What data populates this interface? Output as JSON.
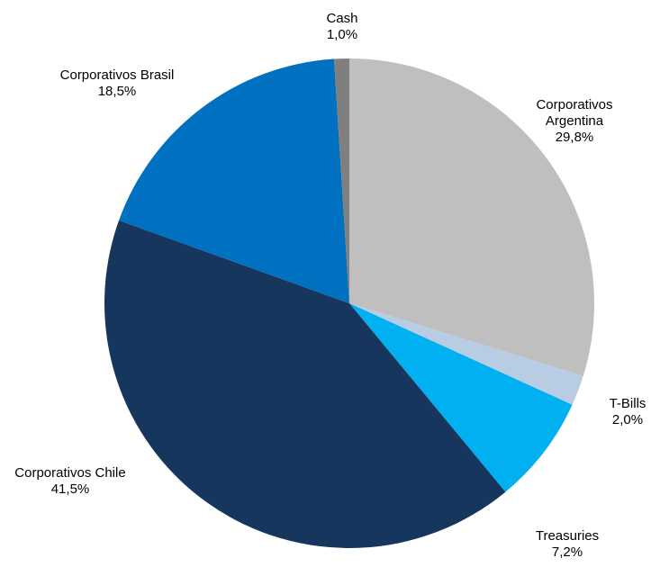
{
  "chart_data": {
    "type": "pie",
    "categories": [
      "Corporativos Argentina",
      "T-Bills",
      "Treasuries",
      "Corporativos Chile",
      "Corporativos Brasil",
      "Cash"
    ],
    "values": [
      29.8,
      2.0,
      7.2,
      41.5,
      18.5,
      1.0
    ],
    "value_labels": [
      "29,8%",
      "2,0%",
      "7,2%",
      "41,5%",
      "18,5%",
      "1,0%"
    ],
    "colors": [
      "#bfbfbf",
      "#b8cce4",
      "#00b0f0",
      "#17365d",
      "#0070c0",
      "#7f7f7f"
    ]
  }
}
